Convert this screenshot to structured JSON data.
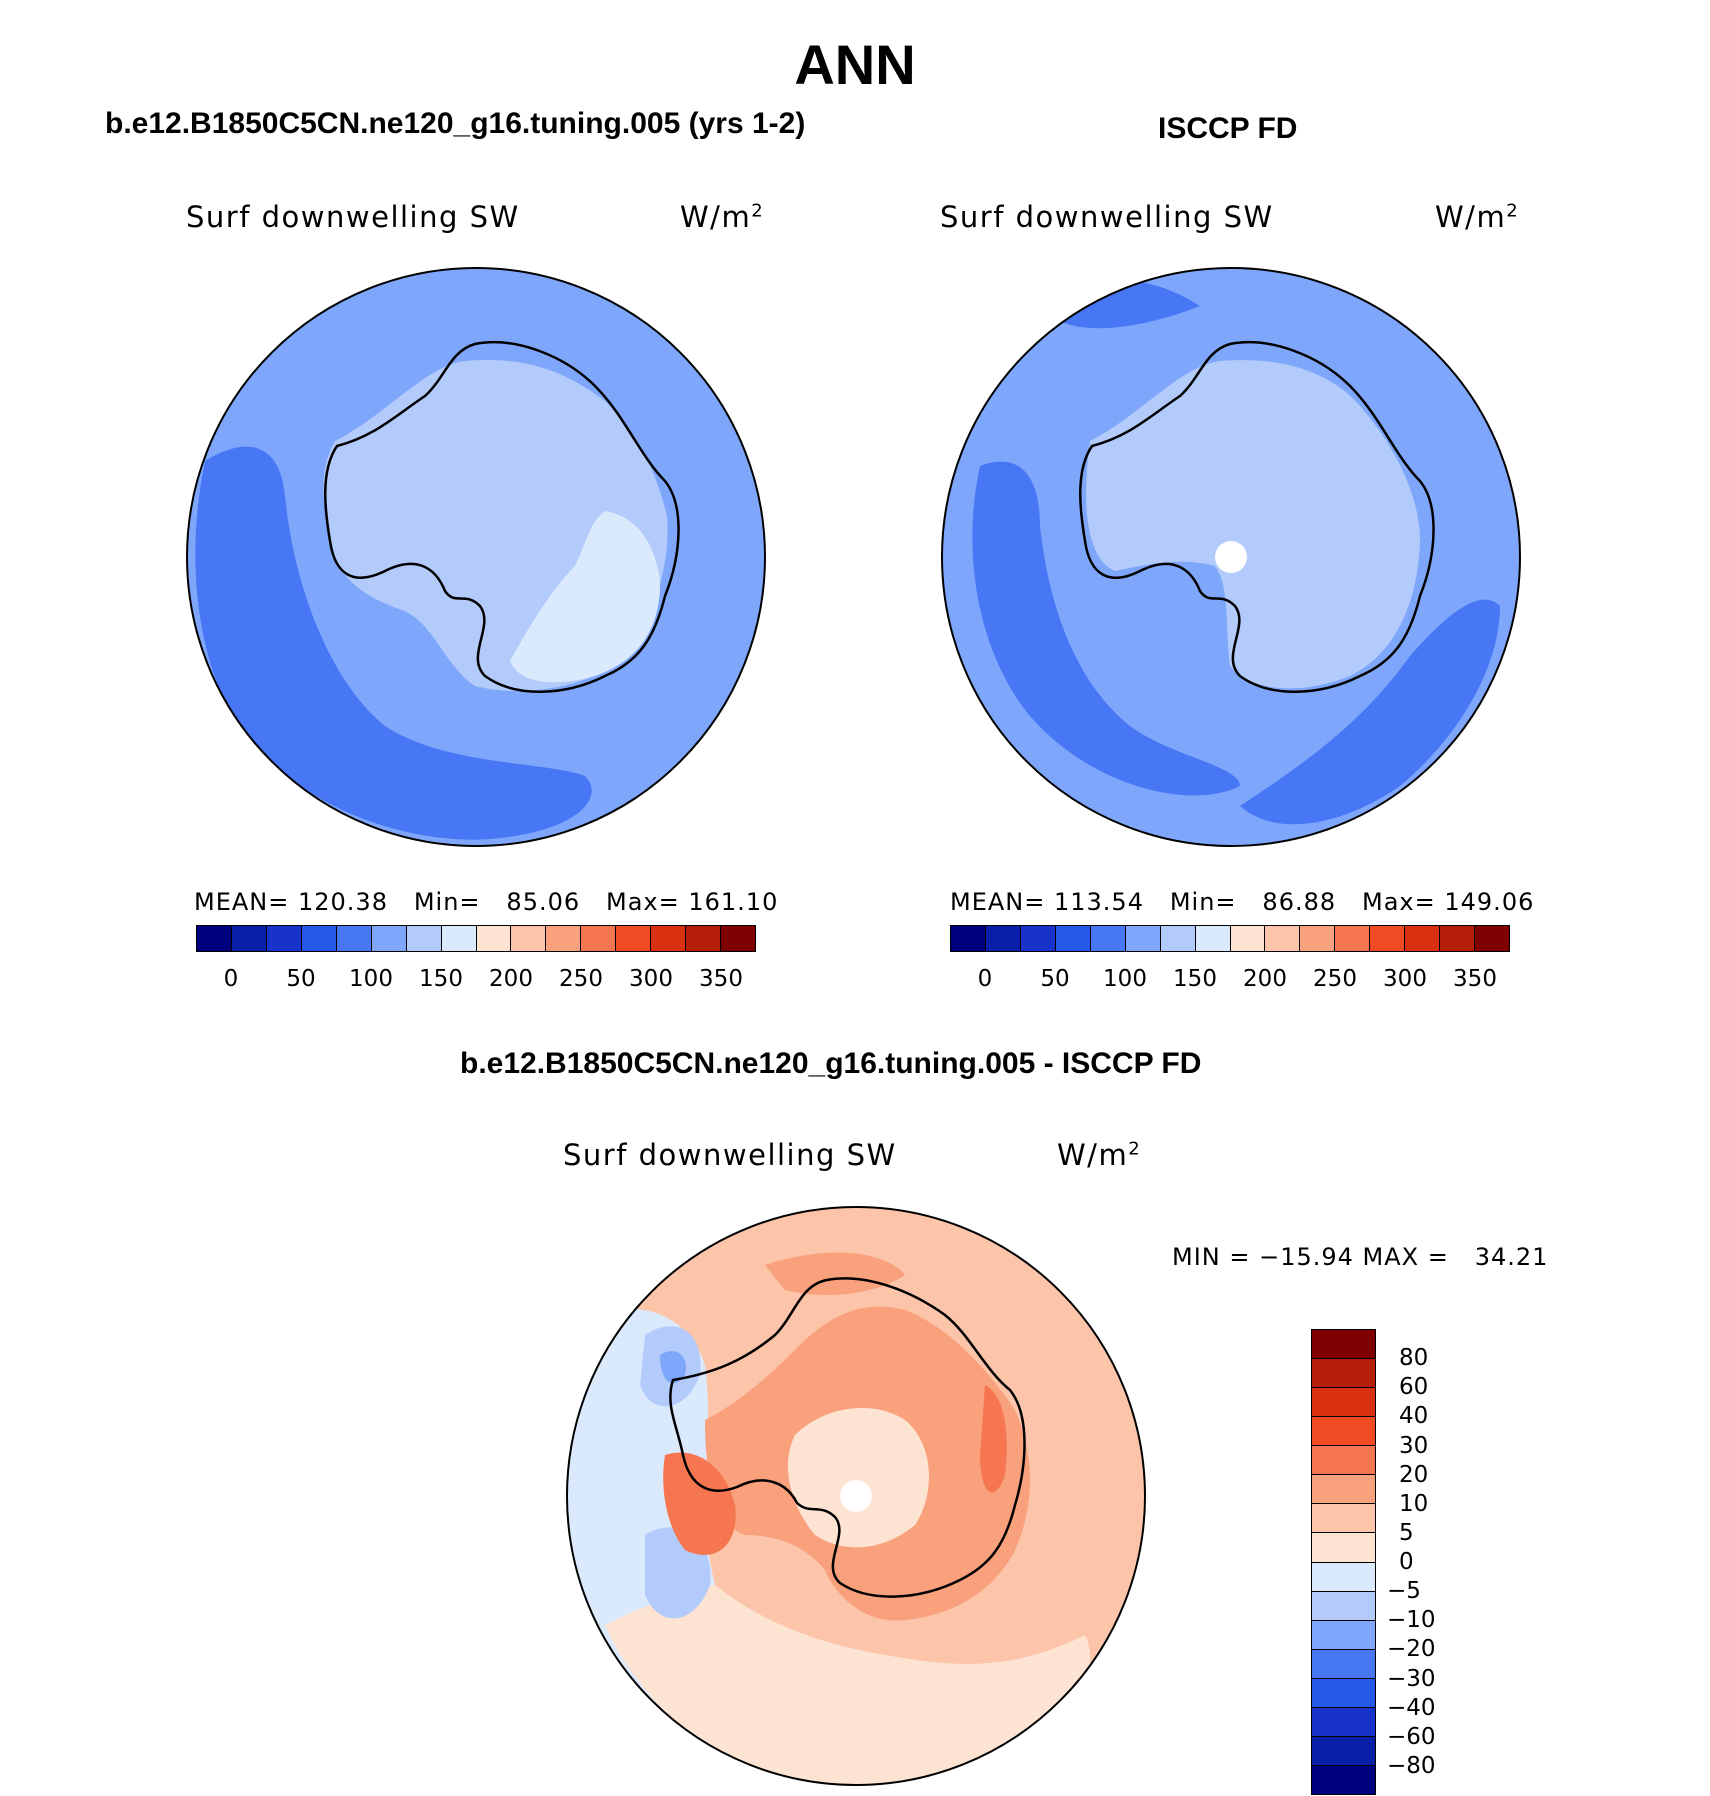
{
  "title": "ANN",
  "panels": {
    "model": {
      "title": "b.e12.B1850C5CN.ne120_g16.tuning.005 (yrs 1-2)",
      "field_name": "Surf downwelling SW",
      "units_base": "W/m",
      "units_exp": "2",
      "stats": "MEAN= 120.38   Min=   85.06   Max= 161.10"
    },
    "obs": {
      "title": "ISCCP FD",
      "field_name": "Surf downwelling SW",
      "units_base": "W/m",
      "units_exp": "2",
      "stats": "MEAN= 113.54   Min=   86.88   Max= 149.06"
    },
    "diff": {
      "title": "b.e12.B1850C5CN.ne120_g16.tuning.005 - ISCCP FD",
      "field_name": "Surf downwelling SW",
      "units_base": "W/m",
      "units_exp": "2",
      "stats": "MIN = −15.94 MAX =   34.21"
    }
  },
  "colorbars": {
    "absolute": {
      "colors": [
        "#00007f",
        "#0a1fa8",
        "#1733cc",
        "#2458e8",
        "#4777f5",
        "#7ea7fb",
        "#b3cbfb",
        "#dbe9fc",
        "#fce3d2",
        "#fcc4a8",
        "#f9a07c",
        "#f57651",
        "#f04b22",
        "#d83010",
        "#b51f0a",
        "#7f0000"
      ],
      "tick_labels": [
        "0",
        "50",
        "100",
        "150",
        "200",
        "250",
        "300",
        "350"
      ]
    },
    "difference": {
      "colors_top_to_bottom": [
        "#7f0000",
        "#b51f0a",
        "#d83010",
        "#f04b22",
        "#f57651",
        "#f9a07c",
        "#fcc4a8",
        "#fce3d2",
        "#dbe9fc",
        "#b3cbfb",
        "#7ea7fb",
        "#4777f5",
        "#2458e8",
        "#1733cc",
        "#0a1fa8",
        "#00007f"
      ],
      "tick_labels": [
        "80",
        "60",
        "40",
        "30",
        "20",
        "10",
        "5",
        "0",
        "−5",
        "−10",
        "−20",
        "−30",
        "−40",
        "−60",
        "−80"
      ]
    }
  },
  "map_colors": {
    "model_ocean": "#7ea7fb",
    "model_band": "#4777f5",
    "model_interior": "#b3cbfb",
    "model_east": "#dbe9fc",
    "obs_ocean": "#7ea7fb",
    "obs_band": "#4777f5",
    "obs_interior": "#b3cbfb",
    "diff_base": "#fcc4a8",
    "diff_warm": "#f9a07c",
    "diff_hot": "#f57651",
    "diff_neutral": "#fce3d2",
    "diff_cool": "#dbe9fc",
    "diff_cold": "#b3cbfb",
    "diff_colder": "#7ea7fb"
  }
}
